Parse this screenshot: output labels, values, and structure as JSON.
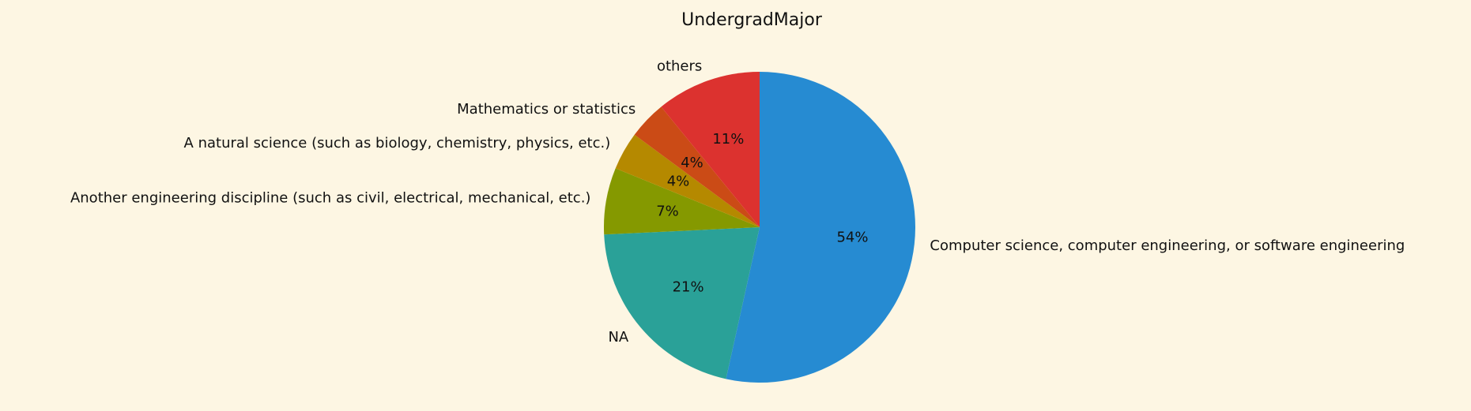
{
  "chart_data": {
    "type": "pie",
    "title": "UndergradMajor",
    "start_angle_deg": 90,
    "direction": "clockwise",
    "slices": [
      {
        "label": "Computer science, computer engineering, or software engineering",
        "value": 54,
        "pct_label": "54%",
        "color": "#268bd2"
      },
      {
        "label": "NA",
        "value": 21,
        "pct_label": "21%",
        "color": "#2aa198"
      },
      {
        "label": "Another engineering discipline (such as civil, electrical, mechanical, etc.)",
        "value": 7,
        "pct_label": "7%",
        "color": "#859900"
      },
      {
        "label": "A natural science (such as biology, chemistry, physics, etc.)",
        "value": 4,
        "pct_label": "4%",
        "color": "#b58900"
      },
      {
        "label": "Mathematics or statistics",
        "value": 4,
        "pct_label": "4%",
        "color": "#cb4b16"
      },
      {
        "label": "others",
        "value": 11,
        "pct_label": "11%",
        "color": "#dc322f"
      }
    ]
  }
}
